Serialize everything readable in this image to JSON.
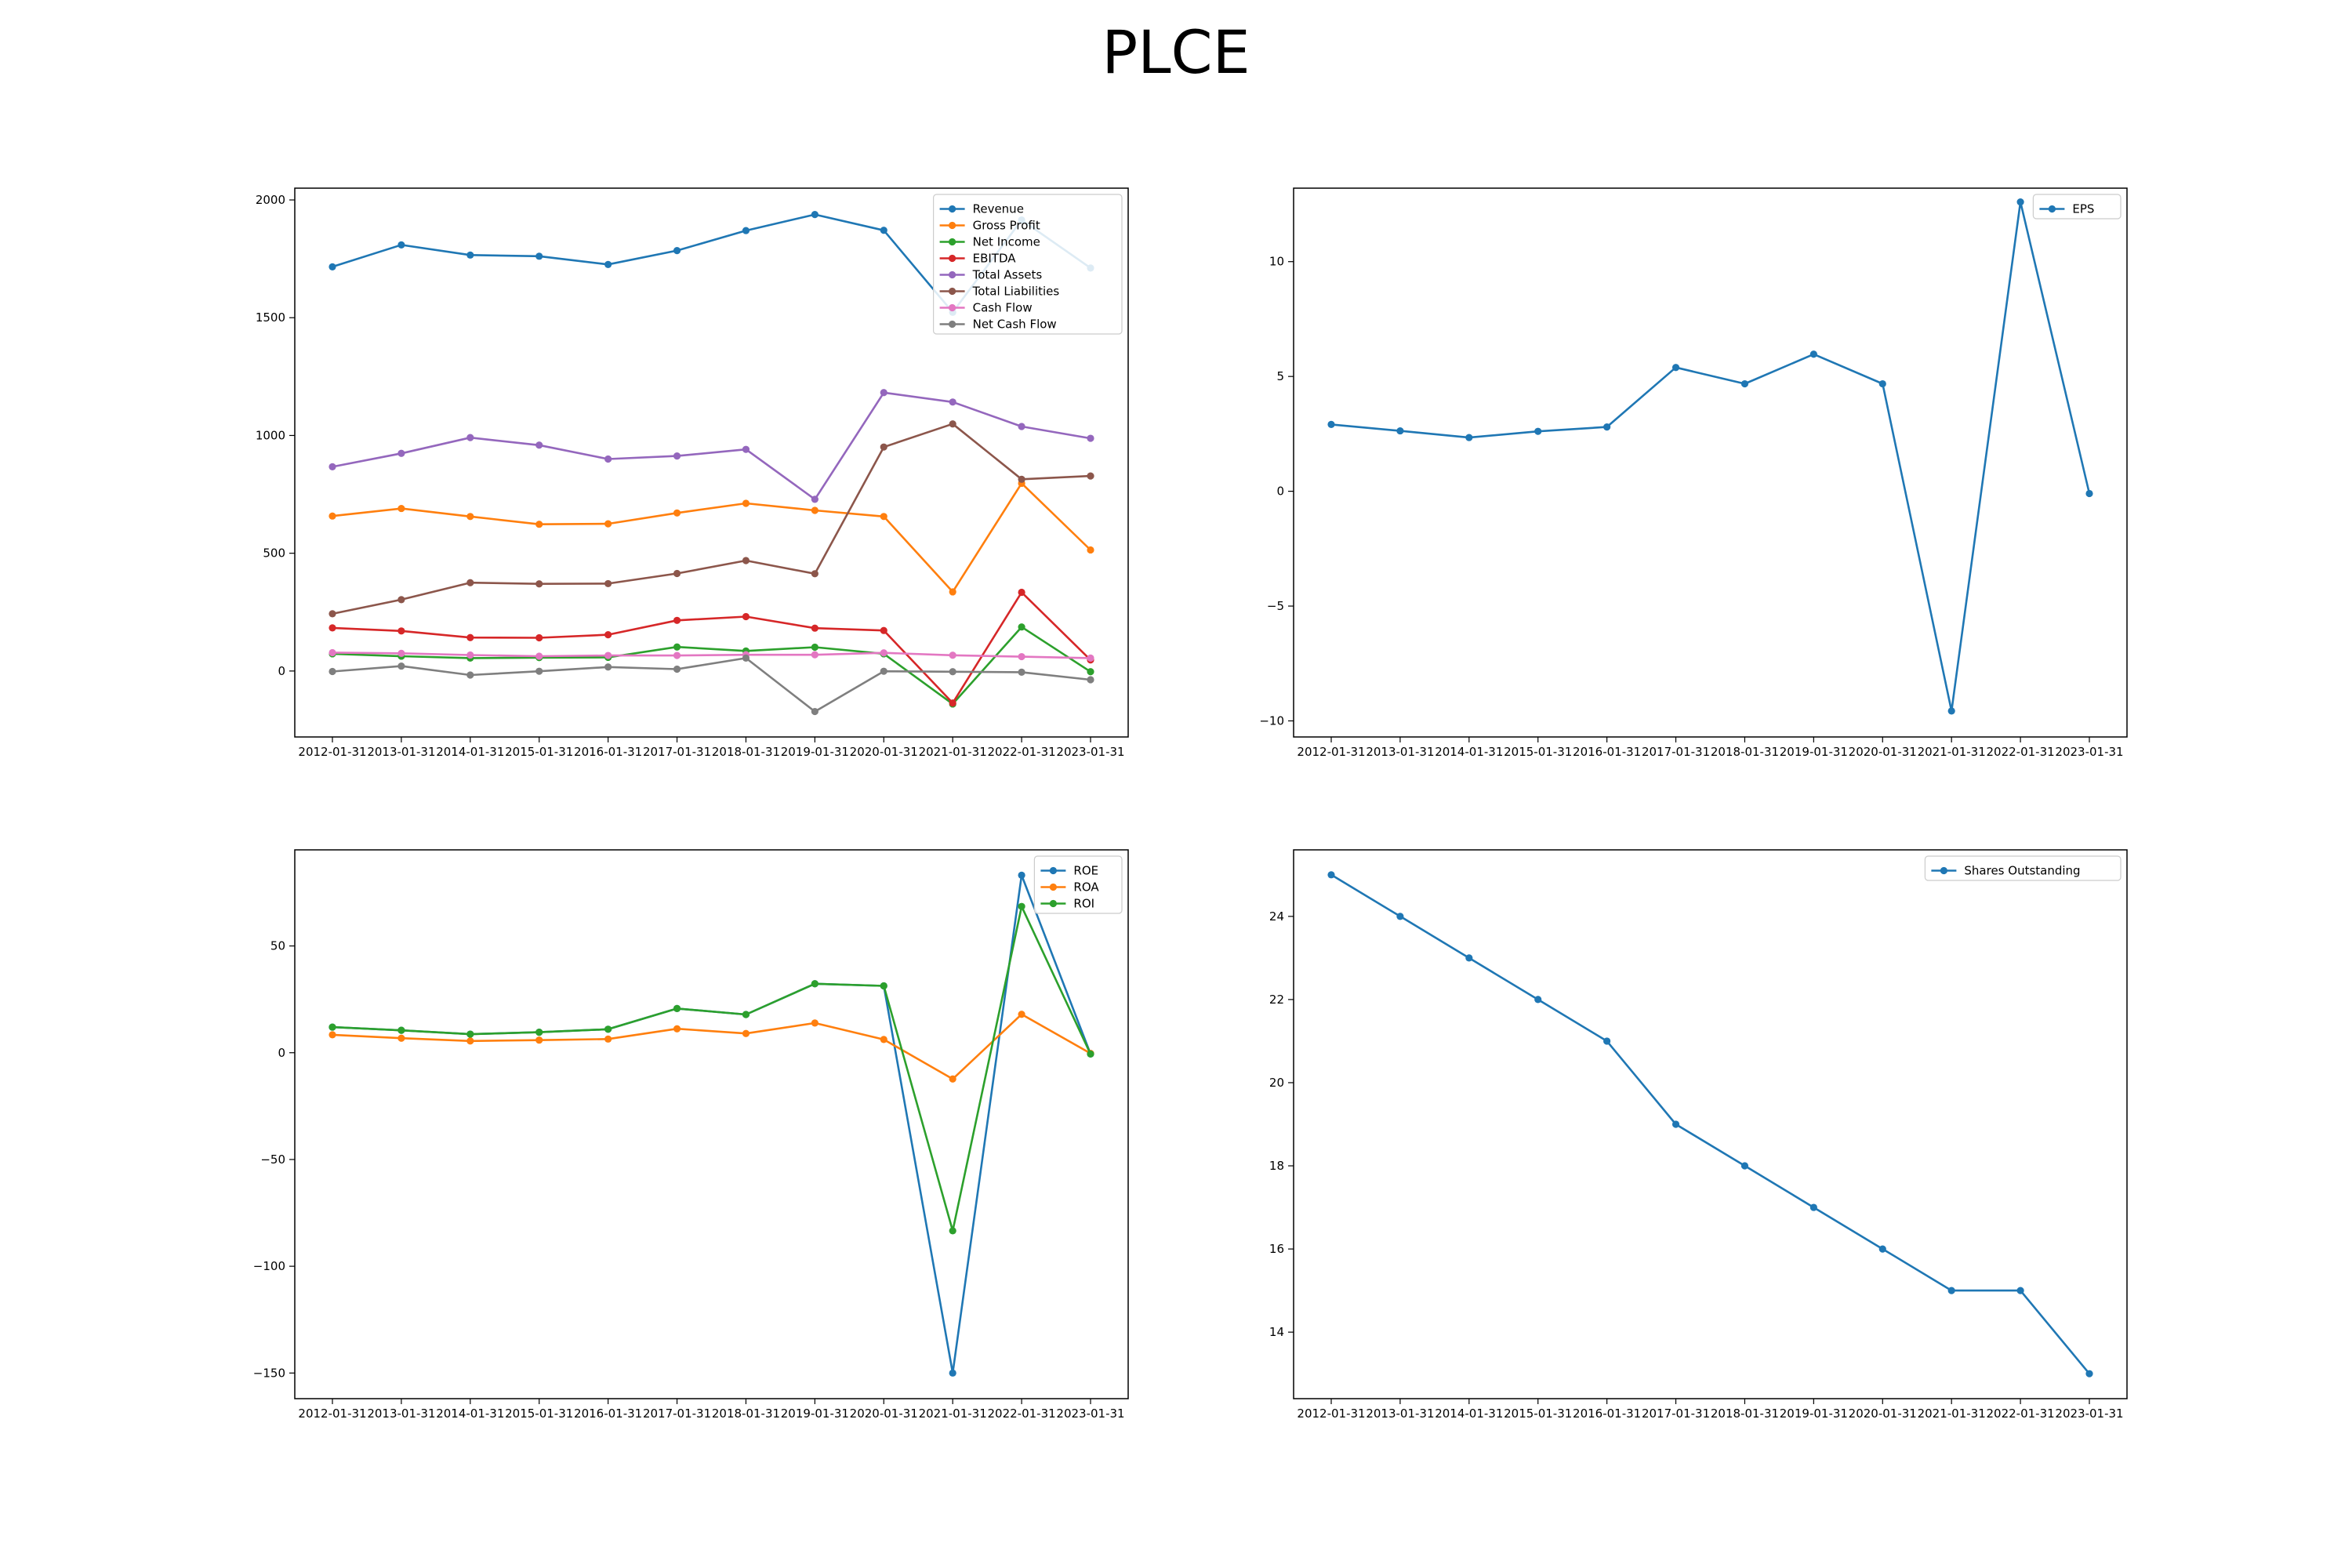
{
  "title": "PLCE",
  "chart_data": [
    {
      "type": "line",
      "x": [
        "2012-01-31",
        "2013-01-31",
        "2014-01-31",
        "2015-01-31",
        "2016-01-31",
        "2017-01-31",
        "2018-01-31",
        "2019-01-31",
        "2020-01-31",
        "2021-01-31",
        "2022-01-31",
        "2023-01-31"
      ],
      "ylim": [
        -280,
        2050
      ],
      "yticks": [
        0,
        500,
        1000,
        1500,
        2000
      ],
      "legend": "top-right",
      "series": [
        {
          "name": "Revenue",
          "color": "#1f77b4",
          "values": [
            1716,
            1809,
            1766,
            1761,
            1726,
            1785,
            1870,
            1938,
            1871,
            1523,
            1915,
            1711
          ]
        },
        {
          "name": "Gross Profit",
          "color": "#ff7f0e",
          "values": [
            658,
            690,
            656,
            623,
            625,
            671,
            712,
            682,
            656,
            336,
            797,
            514
          ]
        },
        {
          "name": "Net Income",
          "color": "#2ca02c",
          "values": [
            73,
            63,
            55,
            57,
            58,
            102,
            85,
            101,
            73,
            -140,
            187,
            -3
          ]
        },
        {
          "name": "EBITDA",
          "color": "#d62728",
          "values": [
            183,
            170,
            142,
            141,
            154,
            215,
            231,
            182,
            172,
            -136,
            334,
            47
          ]
        },
        {
          "name": "Total Assets",
          "color": "#9467bd",
          "values": [
            867,
            924,
            991,
            959,
            900,
            913,
            941,
            729,
            1182,
            1142,
            1038,
            988
          ]
        },
        {
          "name": "Total Liabilities",
          "color": "#8c564b",
          "values": [
            243,
            303,
            375,
            370,
            371,
            414,
            469,
            413,
            951,
            1049,
            814,
            828
          ]
        },
        {
          "name": "Cash Flow",
          "color": "#e377c2",
          "values": [
            78,
            75,
            68,
            63,
            66,
            66,
            69,
            69,
            77,
            67,
            61,
            55
          ]
        },
        {
          "name": "Net Cash Flow",
          "color": "#7f7f7f",
          "values": [
            -2,
            21,
            -17,
            -1,
            17,
            8,
            55,
            -172,
            -1,
            -3,
            -5,
            -37
          ]
        }
      ]
    },
    {
      "type": "line",
      "x": [
        "2012-01-31",
        "2013-01-31",
        "2014-01-31",
        "2015-01-31",
        "2016-01-31",
        "2017-01-31",
        "2018-01-31",
        "2019-01-31",
        "2020-01-31",
        "2021-01-31",
        "2022-01-31",
        "2023-01-31"
      ],
      "ylim": [
        -10.7,
        13.2
      ],
      "yticks": [
        -10,
        -5,
        0,
        5,
        10
      ],
      "legend": "top-right",
      "series": [
        {
          "name": "EPS",
          "color": "#1f77b4",
          "values": [
            2.91,
            2.63,
            2.34,
            2.61,
            2.8,
            5.39,
            4.68,
            5.97,
            4.68,
            -9.57,
            12.6,
            -0.1
          ]
        }
      ]
    },
    {
      "type": "line",
      "x": [
        "2012-01-31",
        "2013-01-31",
        "2014-01-31",
        "2015-01-31",
        "2016-01-31",
        "2017-01-31",
        "2018-01-31",
        "2019-01-31",
        "2020-01-31",
        "2021-01-31",
        "2022-01-31",
        "2023-01-31"
      ],
      "ylim": [
        -162,
        95
      ],
      "yticks": [
        -150,
        -100,
        -50,
        0,
        50
      ],
      "legend": "top-right",
      "series": [
        {
          "name": "ROE",
          "color": "#1f77b4",
          "values": [
            12,
            10.5,
            8.7,
            9.6,
            11,
            20.7,
            17.9,
            32.3,
            31.3,
            -150,
            83.1,
            -0.6
          ]
        },
        {
          "name": "ROA",
          "color": "#ff7f0e",
          "values": [
            8.4,
            6.8,
            5.5,
            5.9,
            6.4,
            11.2,
            9,
            13.9,
            6.2,
            -12.3,
            18,
            -0.3
          ]
        },
        {
          "name": "ROI",
          "color": "#2ca02c",
          "values": [
            12,
            10.5,
            8.7,
            9.6,
            11,
            20.7,
            17.9,
            32.3,
            31.3,
            -83.4,
            68.5,
            -0.6
          ]
        }
      ]
    },
    {
      "type": "line",
      "x": [
        "2012-01-31",
        "2013-01-31",
        "2014-01-31",
        "2015-01-31",
        "2016-01-31",
        "2017-01-31",
        "2018-01-31",
        "2019-01-31",
        "2020-01-31",
        "2021-01-31",
        "2022-01-31",
        "2023-01-31"
      ],
      "ylim": [
        12.4,
        25.6
      ],
      "yticks": [
        14,
        16,
        18,
        20,
        22,
        24
      ],
      "legend": "top-right",
      "series": [
        {
          "name": "Shares Outstanding",
          "color": "#1f77b4",
          "values": [
            25,
            24,
            23,
            22,
            21,
            19,
            18,
            17,
            16,
            15,
            15,
            13
          ]
        }
      ]
    }
  ]
}
